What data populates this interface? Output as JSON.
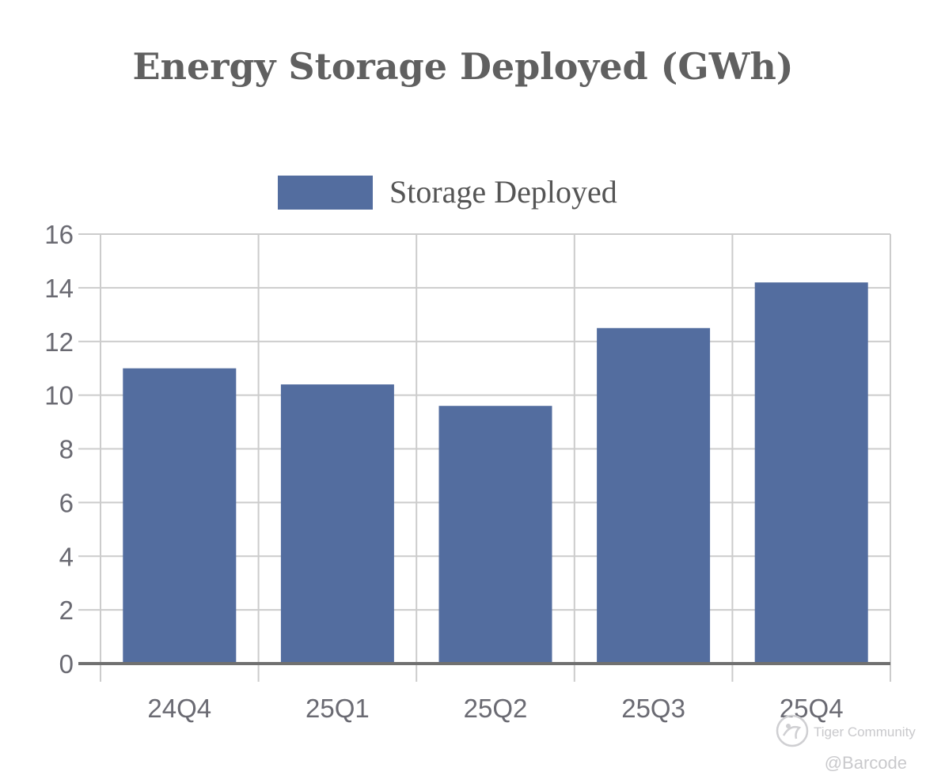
{
  "chart_data": {
    "type": "bar",
    "title": "Energy Storage Deployed (GWh)",
    "categories": [
      "24Q4",
      "25Q1",
      "25Q2",
      "25Q3",
      "25Q4"
    ],
    "series": [
      {
        "name": "Storage Deployed",
        "values": [
          11.0,
          10.4,
          9.6,
          12.5,
          14.2
        ],
        "color": "#536d9f"
      }
    ],
    "ylim": [
      0,
      16
    ],
    "yticks": [
      0,
      2,
      4,
      6,
      8,
      10,
      12,
      14,
      16
    ],
    "grid": true,
    "legend_position": "top-center"
  },
  "watermark": {
    "brand": "Tiger Community",
    "handle": "@Barcode",
    "logo_icon": "tiger-community-logo-icon"
  }
}
